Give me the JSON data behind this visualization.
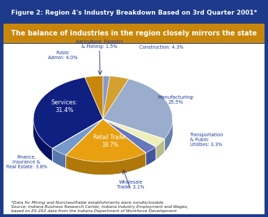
{
  "title": "Figure 2: Region 4's Industry Breakdown Based on 3rd Quarter 2001*",
  "subtitle": "The balance of industries in the region closely mirrors the state",
  "title_bg": "#1e3a8a",
  "subtitle_bg": "#c8860a",
  "outer_bg": "#1e3a8a",
  "inner_bg": "#ffffff",
  "footer": "*Data for Mining and Nonclassifiable establishments were nondisclosable.\nSource: Indiana Business Research Center, Indiana Industry Employment and Wages,\nbased on ES-202 data from the Indiana Department of Workforce Development",
  "slices": [
    {
      "label": "Agriculture, Forestry\n& Fishing: 1.5%",
      "value": 1.5,
      "color": "#8899cc",
      "dark_color": "#5566aa"
    },
    {
      "label": "Construction: 4.3%",
      "value": 4.3,
      "color": "#d4a030",
      "dark_color": "#a07010"
    },
    {
      "label": "Manufacturing:\n25.5%",
      "value": 25.5,
      "color": "#9aadcc",
      "dark_color": "#6680aa"
    },
    {
      "label": "Transportation\n& Public\nUtilities: 3.3%",
      "value": 3.3,
      "color": "#eeeebb",
      "dark_color": "#bbbb88"
    },
    {
      "label": "Wholesale\nTrade: 3.1%",
      "value": 3.1,
      "color": "#6677bb",
      "dark_color": "#445599"
    },
    {
      "label": "Retail Trade:\n18.7%",
      "value": 18.7,
      "color": "#e8a010",
      "dark_color": "#b07808"
    },
    {
      "label": "Finance,\nInsurance &\nReal Estate: 3.8%",
      "value": 3.8,
      "color": "#7799cc",
      "dark_color": "#5577aa"
    },
    {
      "label": "Services:\n31.4%",
      "value": 31.4,
      "color": "#102080",
      "dark_color": "#081060"
    },
    {
      "label": "Public\nAdmin: 4.0%",
      "value": 4.0,
      "color": "#c8860a",
      "dark_color": "#906008"
    }
  ],
  "figsize": [
    3.85,
    3.12
  ],
  "dpi": 100
}
